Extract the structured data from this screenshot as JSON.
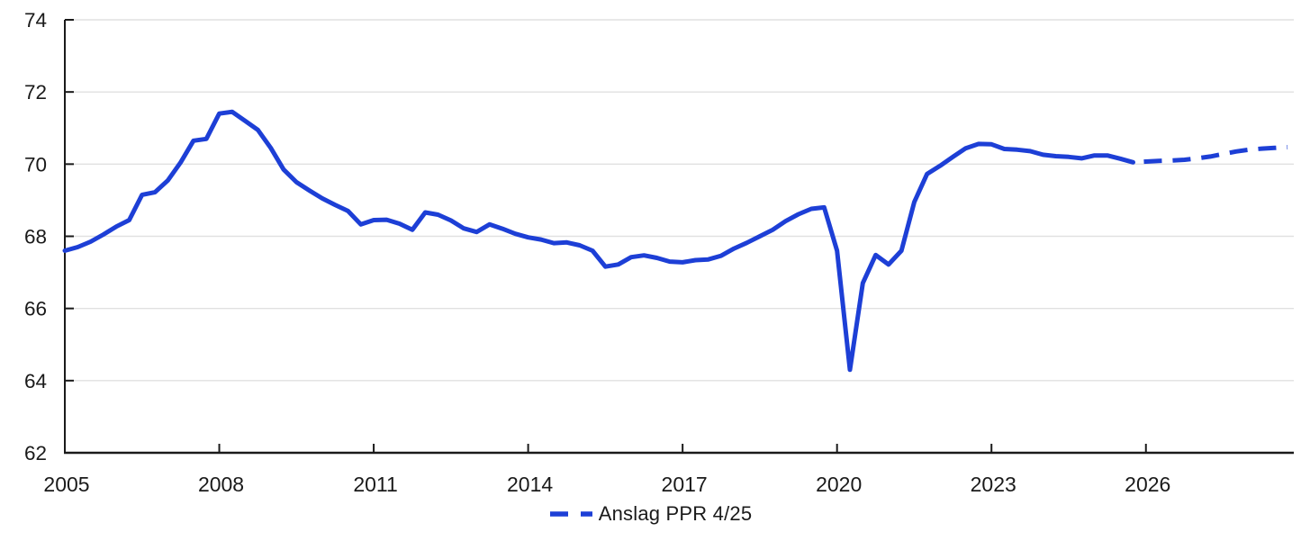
{
  "chart_data": {
    "type": "line",
    "title": "",
    "xlabel": "",
    "ylabel": "",
    "ylim": [
      62,
      74
    ],
    "xlim": [
      2005,
      2028.75
    ],
    "grid": "horizontal",
    "y_ticks": [
      62,
      64,
      66,
      68,
      70,
      72,
      74
    ],
    "x_ticks": [
      {
        "year": 2005,
        "label": "2005"
      },
      {
        "year": 2008,
        "label": "2008"
      },
      {
        "year": 2011,
        "label": "2011"
      },
      {
        "year": 2014,
        "label": "2014"
      },
      {
        "year": 2017,
        "label": "2017"
      },
      {
        "year": 2020,
        "label": "2020"
      },
      {
        "year": 2023,
        "label": "2023"
      },
      {
        "year": 2026,
        "label": "2026"
      }
    ],
    "legend": {
      "label": "Anslag PPR 4/25",
      "position": "bottom-center",
      "marker_style": "dashed"
    },
    "frequency": "quarterly",
    "series": [
      {
        "name": "",
        "style": "solid",
        "color": "#1d3fd6",
        "x": [
          2005.0,
          2005.25,
          2005.5,
          2005.75,
          2006.0,
          2006.25,
          2006.5,
          2006.75,
          2007.0,
          2007.25,
          2007.5,
          2007.75,
          2008.0,
          2008.25,
          2008.5,
          2008.75,
          2009.0,
          2009.25,
          2009.5,
          2009.75,
          2010.0,
          2010.25,
          2010.5,
          2010.75,
          2011.0,
          2011.25,
          2011.5,
          2011.75,
          2012.0,
          2012.25,
          2012.5,
          2012.75,
          2013.0,
          2013.25,
          2013.5,
          2013.75,
          2014.0,
          2014.25,
          2014.5,
          2014.75,
          2015.0,
          2015.25,
          2015.5,
          2015.75,
          2016.0,
          2016.25,
          2016.5,
          2016.75,
          2017.0,
          2017.25,
          2017.5,
          2017.75,
          2018.0,
          2018.25,
          2018.5,
          2018.75,
          2019.0,
          2019.25,
          2019.5,
          2019.75,
          2020.0,
          2020.25,
          2020.5,
          2020.75,
          2021.0,
          2021.25,
          2021.5,
          2021.75,
          2022.0,
          2022.25,
          2022.5,
          2022.75,
          2023.0,
          2023.25,
          2023.5,
          2023.75,
          2024.0,
          2024.25,
          2024.5,
          2024.75,
          2025.0,
          2025.25,
          2025.5,
          2025.75
        ],
        "values": [
          67.6,
          67.7,
          67.85,
          68.05,
          68.27,
          68.45,
          69.15,
          69.22,
          69.55,
          70.05,
          70.65,
          70.7,
          71.4,
          71.45,
          71.2,
          70.95,
          70.45,
          69.85,
          69.5,
          69.27,
          69.05,
          68.87,
          68.7,
          68.33,
          68.45,
          68.46,
          68.35,
          68.18,
          68.66,
          68.6,
          68.44,
          68.22,
          68.12,
          68.33,
          68.21,
          68.07,
          67.97,
          67.91,
          67.81,
          67.83,
          67.75,
          67.6,
          67.16,
          67.22,
          67.42,
          67.47,
          67.4,
          67.3,
          67.28,
          67.34,
          67.36,
          67.46,
          67.66,
          67.82,
          68.0,
          68.18,
          68.42,
          68.61,
          68.76,
          68.8,
          67.6,
          64.3,
          66.7,
          67.48,
          67.22,
          67.6,
          68.95,
          69.73,
          69.95,
          70.2,
          70.44,
          70.56,
          70.55,
          70.42,
          70.4,
          70.36,
          70.26,
          70.22,
          70.2,
          70.16,
          70.24,
          70.24,
          70.15,
          70.05
        ]
      },
      {
        "name": "Anslag PPR 4/25",
        "style": "dashed",
        "color": "#1d3fd6",
        "x": [
          2025.75,
          2026.0,
          2026.25,
          2026.5,
          2026.75,
          2027.0,
          2027.25,
          2027.5,
          2027.75,
          2028.0,
          2028.25,
          2028.5,
          2028.75
        ],
        "values": [
          70.05,
          70.07,
          70.09,
          70.1,
          70.12,
          70.16,
          70.21,
          70.28,
          70.35,
          70.4,
          70.43,
          70.45,
          70.47
        ]
      }
    ]
  },
  "colors": {
    "line": "#1d3fd6",
    "grid": "#e1e1e1",
    "axis": "#1a1a1a",
    "text": "#1a1a1a",
    "background": "#ffffff"
  }
}
